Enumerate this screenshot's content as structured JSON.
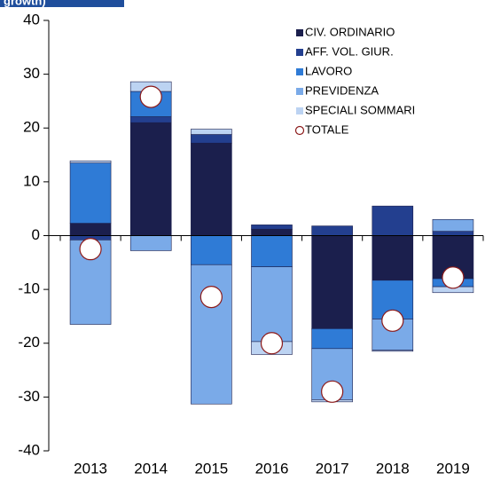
{
  "chart_data": {
    "type": "stacked_bar",
    "title": "growth)",
    "categories": [
      "2013",
      "2014",
      "2015",
      "2016",
      "2017",
      "2018",
      "2019"
    ],
    "series": [
      {
        "name": "CIV. ORDINARIO",
        "color": "#1b1f4d",
        "values": [
          2.3,
          21.0,
          17.2,
          1.2,
          -17.3,
          -8.3,
          -8.0
        ]
      },
      {
        "name": "AFF. VOL. GIUR.",
        "color": "#233f8f",
        "values": [
          -0.8,
          1.1,
          1.6,
          0.8,
          1.8,
          5.5,
          0.8
        ]
      },
      {
        "name": "LAVORO",
        "color": "#2f7bd6",
        "values": [
          11.2,
          4.7,
          -5.4,
          -5.8,
          -3.7,
          -7.2,
          -1.5
        ]
      },
      {
        "name": "PREVIDENZA",
        "color": "#7aaae8",
        "values": [
          -15.7,
          -2.8,
          -25.9,
          -13.9,
          -9.5,
          -5.8,
          2.2
        ]
      },
      {
        "name": "SPECIALI SOMMARI",
        "color": "#bcd3f2",
        "values": [
          0.4,
          1.8,
          1.0,
          -2.4,
          -0.4,
          -0.2,
          -1.1
        ]
      }
    ],
    "total": {
      "name": "TOTALE",
      "color": "#8b1a1a",
      "values": [
        -2.5,
        25.8,
        -11.4,
        -20.0,
        -29.0,
        -15.8,
        -7.8
      ]
    },
    "ylim": [
      -40,
      40
    ],
    "yticks": [
      -40,
      -30,
      -20,
      -10,
      0,
      10,
      20,
      30,
      40
    ]
  }
}
